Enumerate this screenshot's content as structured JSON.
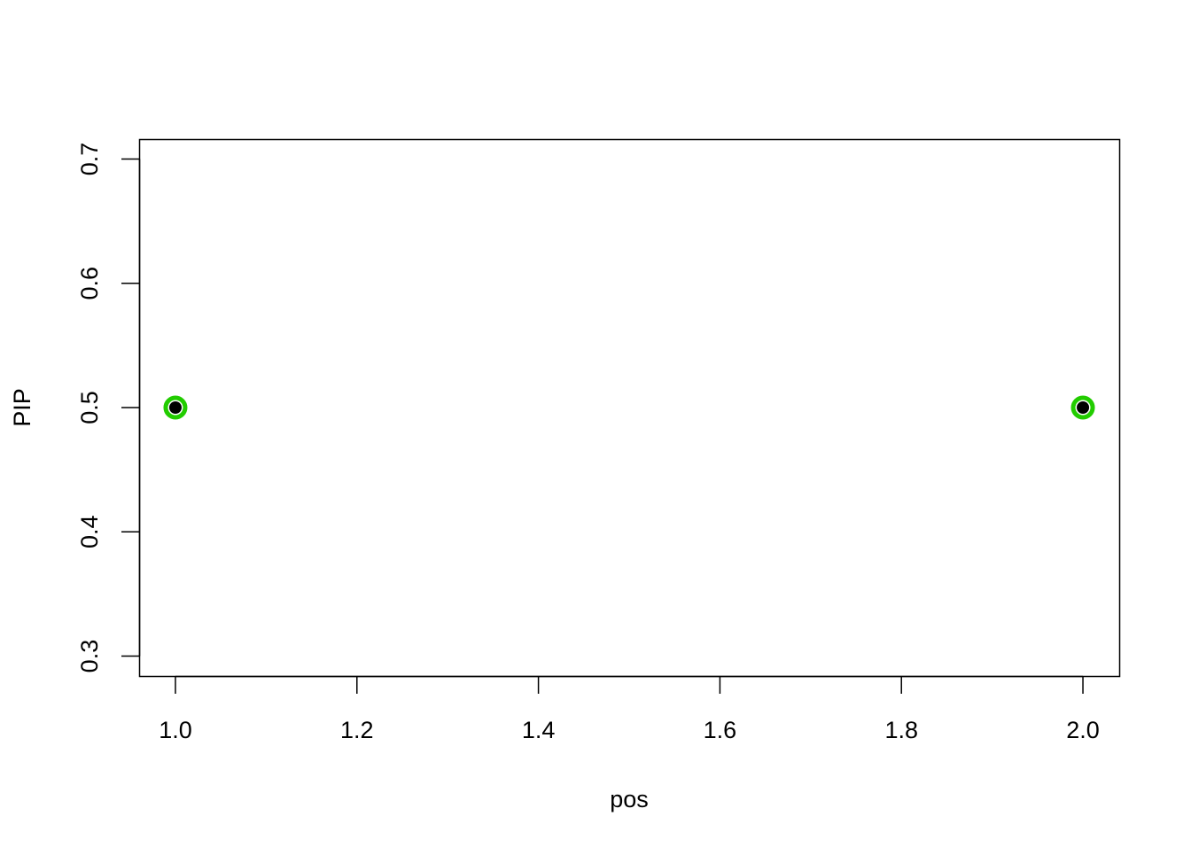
{
  "chart_data": {
    "type": "scatter",
    "title": "",
    "xlabel": "pos",
    "ylabel": "PIP",
    "xlim": [
      0.96,
      2.04
    ],
    "ylim": [
      0.284,
      0.716
    ],
    "xticks": [
      1.0,
      1.2,
      1.4,
      1.6,
      1.8,
      2.0
    ],
    "xtick_labels": [
      "1.0",
      "1.2",
      "1.4",
      "1.6",
      "1.8",
      "2.0"
    ],
    "yticks": [
      0.3,
      0.4,
      0.5,
      0.6,
      0.7
    ],
    "ytick_labels": [
      "0.3",
      "0.4",
      "0.5",
      "0.6",
      "0.7"
    ],
    "grid": false,
    "points": [
      {
        "x": 1,
        "y": 0.5
      },
      {
        "x": 2,
        "y": 0.5
      }
    ],
    "colors": {
      "ring": "#22CC00",
      "point": "#000000"
    }
  }
}
